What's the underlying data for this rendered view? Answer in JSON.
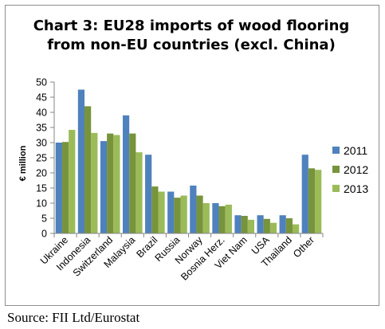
{
  "chart_data": {
    "type": "bar",
    "title_lines": [
      "Chart 3: EU28 imports of wood flooring",
      "from non-EU countries (excl. China)"
    ],
    "ylabel": "€ million",
    "xlabel": "",
    "ylim": [
      0,
      50
    ],
    "yticks": [
      0,
      5,
      10,
      15,
      20,
      25,
      30,
      35,
      40,
      45,
      50
    ],
    "grid": false,
    "legend_position": "right",
    "categories": [
      "Ukraine",
      "Indonesia",
      "Switzerland",
      "Malaysia",
      "Brazil",
      "Russia",
      "Norway",
      "Bosnia Herz.",
      "Viet Nam",
      "USA",
      "Thailand",
      "Other"
    ],
    "series": [
      {
        "name": "2011",
        "color": "#4f81bd",
        "values": [
          30.0,
          47.5,
          30.5,
          39.0,
          26.0,
          13.8,
          15.8,
          10.0,
          6.0,
          6.0,
          6.0,
          26.0
        ]
      },
      {
        "name": "2012",
        "color": "#77933c",
        "values": [
          30.2,
          42.0,
          33.0,
          33.0,
          15.5,
          11.8,
          12.5,
          9.0,
          5.8,
          4.8,
          5.0,
          21.5
        ]
      },
      {
        "name": "2013",
        "color": "#9bbb59",
        "values": [
          34.2,
          33.2,
          32.5,
          26.8,
          13.8,
          12.5,
          10.0,
          9.5,
          4.5,
          3.5,
          3.0,
          21.0
        ]
      }
    ]
  },
  "source": "Source: FII Ltd/Eurostat"
}
